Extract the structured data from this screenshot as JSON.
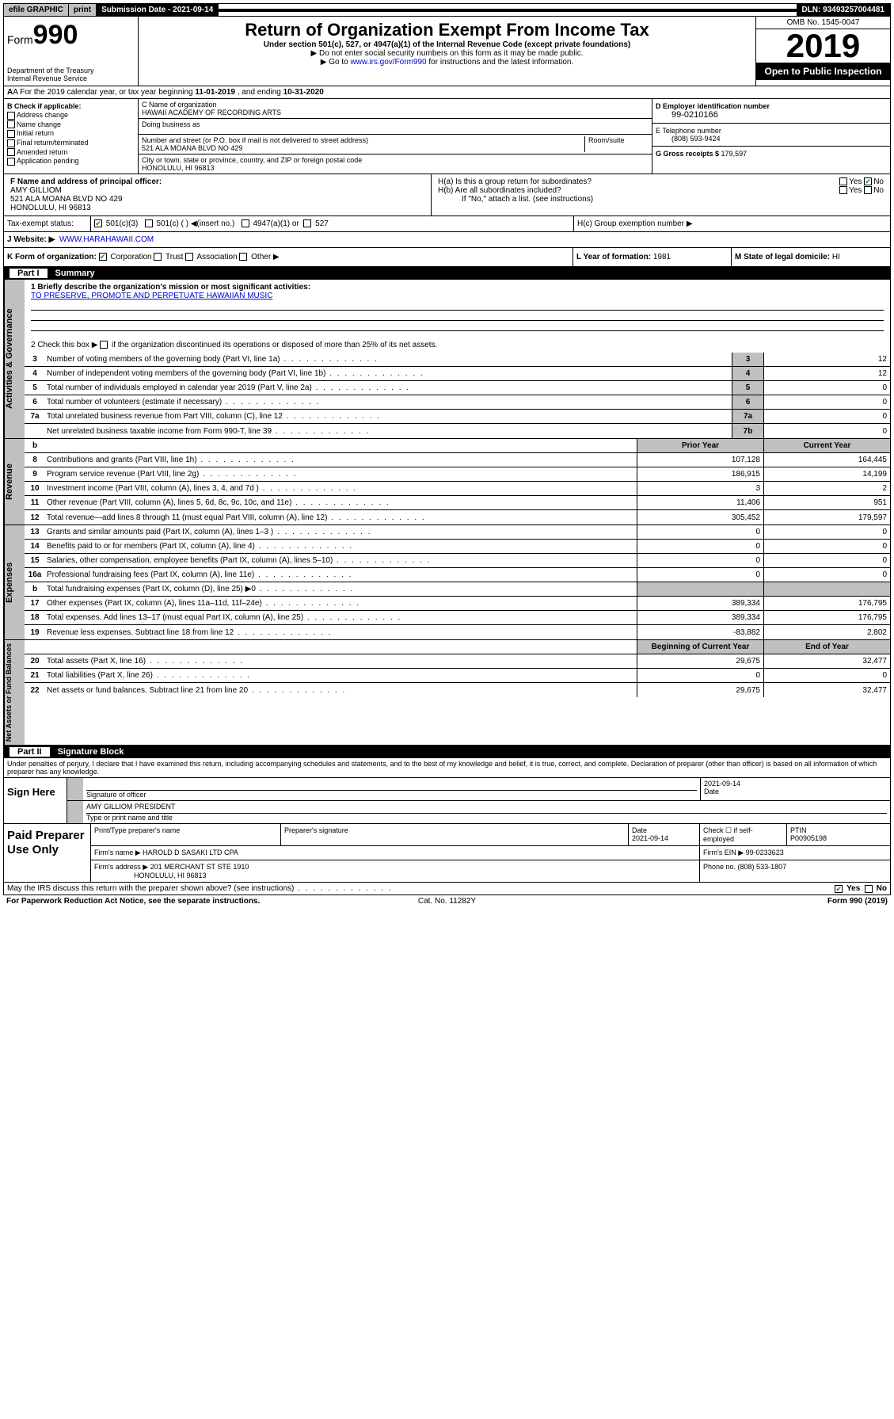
{
  "topbar": {
    "efile": "efile GRAPHIC",
    "print": "print",
    "subdate_label": "Submission Date - 2021-09-14",
    "dln": "DLN: 93493257004481"
  },
  "header": {
    "form_prefix": "Form",
    "form_num": "990",
    "dept": "Department of the Treasury\nInternal Revenue Service",
    "title": "Return of Organization Exempt From Income Tax",
    "subtitle": "Under section 501(c), 527, or 4947(a)(1) of the Internal Revenue Code (except private foundations)",
    "arrow1": "▶ Do not enter social security numbers on this form as it may be made public.",
    "arrow2_pre": "▶ Go to ",
    "arrow2_link": "www.irs.gov/Form990",
    "arrow2_post": " for instructions and the latest information.",
    "omb": "OMB No. 1545-0047",
    "year": "2019",
    "open": "Open to Public Inspection"
  },
  "row_a": {
    "prefix": "A  For the 2019 calendar year, or tax year beginning ",
    "begin": "11-01-2019",
    "mid": " , and ending ",
    "end": "10-31-2020"
  },
  "b": {
    "label": "B Check if applicable:",
    "opts": [
      "Address change",
      "Name change",
      "Initial return",
      "Final return/terminated",
      "Amended return",
      "Application pending"
    ]
  },
  "c": {
    "name_label": "C Name of organization",
    "name": "HAWAII ACADEMY OF RECORDING ARTS",
    "dba_label": "Doing business as",
    "street_label": "Number and street (or P.O. box if mail is not delivered to street address)",
    "street": "521 ALA MOANA BLVD NO 429",
    "room_label": "Room/suite",
    "city_label": "City or town, state or province, country, and ZIP or foreign postal code",
    "city": "HONOLULU, HI  96813"
  },
  "d": {
    "label": "D Employer identification number",
    "val": "99-0210166"
  },
  "e": {
    "label": "E Telephone number",
    "val": "(808) 593-9424"
  },
  "g": {
    "label": "G Gross receipts $ ",
    "val": "179,597"
  },
  "f": {
    "label": "F  Name and address of principal officer:",
    "name": "AMY GILLIOM",
    "street": "521 ALA MOANA BLVD NO 429",
    "city": "HONOLULU, HI  96813"
  },
  "h": {
    "a": "H(a)  Is this a group return for subordinates?",
    "b": "H(b)  Are all subordinates included?",
    "b_note": "If \"No,\" attach a list. (see instructions)",
    "c": "H(c)  Group exemption number ▶"
  },
  "i": {
    "label": "Tax-exempt status:",
    "opt1": "501(c)(3)",
    "opt2": "501(c) (   ) ◀(insert no.)",
    "opt3": "4947(a)(1) or",
    "opt4": "527"
  },
  "j": {
    "label": "J   Website: ▶",
    "val": "WWW.HARAHAWAII.COM"
  },
  "k": {
    "label": "K Form of organization:",
    "corp": "Corporation",
    "trust": "Trust",
    "assoc": "Association",
    "other": "Other ▶"
  },
  "l": {
    "label": "L Year of formation: ",
    "val": "1981"
  },
  "m": {
    "label": "M State of legal domicile: ",
    "val": "HI"
  },
  "part1": {
    "num": "Part I",
    "title": "Summary"
  },
  "mission": {
    "q": "1   Briefly describe the organization's mission or most significant activities:",
    "text": "TO PRESERVE, PROMOTE AND PERPETUATE HAWAIIAN MUSIC",
    "q2_pre": "2   Check this box ▶ ",
    "q2_post": " if the organization discontinued its operations or disposed of more than 25% of its net assets."
  },
  "gov_lines": [
    {
      "n": "3",
      "d": "Number of voting members of the governing body (Part VI, line 1a)",
      "box": "3",
      "v": "12"
    },
    {
      "n": "4",
      "d": "Number of independent voting members of the governing body (Part VI, line 1b)",
      "box": "4",
      "v": "12"
    },
    {
      "n": "5",
      "d": "Total number of individuals employed in calendar year 2019 (Part V, line 2a)",
      "box": "5",
      "v": "0"
    },
    {
      "n": "6",
      "d": "Total number of volunteers (estimate if necessary)",
      "box": "6",
      "v": "0"
    },
    {
      "n": "7a",
      "d": "Total unrelated business revenue from Part VIII, column (C), line 12",
      "box": "7a",
      "v": "0"
    },
    {
      "n": "",
      "d": "Net unrelated business taxable income from Form 990-T, line 39",
      "box": "7b",
      "v": "0"
    }
  ],
  "rev_hdr": {
    "b": "b",
    "prior": "Prior Year",
    "curr": "Current Year"
  },
  "rev_lines": [
    {
      "n": "8",
      "d": "Contributions and grants (Part VIII, line 1h)",
      "p": "107,128",
      "c": "164,445"
    },
    {
      "n": "9",
      "d": "Program service revenue (Part VIII, line 2g)",
      "p": "186,915",
      "c": "14,199"
    },
    {
      "n": "10",
      "d": "Investment income (Part VIII, column (A), lines 3, 4, and 7d )",
      "p": "3",
      "c": "2"
    },
    {
      "n": "11",
      "d": "Other revenue (Part VIII, column (A), lines 5, 6d, 8c, 9c, 10c, and 11e)",
      "p": "11,406",
      "c": "951"
    },
    {
      "n": "12",
      "d": "Total revenue—add lines 8 through 11 (must equal Part VIII, column (A), line 12)",
      "p": "305,452",
      "c": "179,597"
    }
  ],
  "exp_lines": [
    {
      "n": "13",
      "d": "Grants and similar amounts paid (Part IX, column (A), lines 1–3 )",
      "p": "0",
      "c": "0"
    },
    {
      "n": "14",
      "d": "Benefits paid to or for members (Part IX, column (A), line 4)",
      "p": "0",
      "c": "0"
    },
    {
      "n": "15",
      "d": "Salaries, other compensation, employee benefits (Part IX, column (A), lines 5–10)",
      "p": "0",
      "c": "0"
    },
    {
      "n": "16a",
      "d": "Professional fundraising fees (Part IX, column (A), line 11e)",
      "p": "0",
      "c": "0"
    },
    {
      "n": "b",
      "d": "Total fundraising expenses (Part IX, column (D), line 25) ▶0",
      "p": "",
      "c": "",
      "grey": true
    },
    {
      "n": "17",
      "d": "Other expenses (Part IX, column (A), lines 11a–11d, 11f–24e)",
      "p": "389,334",
      "c": "176,795"
    },
    {
      "n": "18",
      "d": "Total expenses. Add lines 13–17 (must equal Part IX, column (A), line 25)",
      "p": "389,334",
      "c": "176,795"
    },
    {
      "n": "19",
      "d": "Revenue less expenses. Subtract line 18 from line 12",
      "p": "-83,882",
      "c": "2,802"
    }
  ],
  "na_hdr": {
    "prior": "Beginning of Current Year",
    "curr": "End of Year"
  },
  "na_lines": [
    {
      "n": "20",
      "d": "Total assets (Part X, line 16)",
      "p": "29,675",
      "c": "32,477"
    },
    {
      "n": "21",
      "d": "Total liabilities (Part X, line 26)",
      "p": "0",
      "c": "0"
    },
    {
      "n": "22",
      "d": "Net assets or fund balances. Subtract line 21 from line 20",
      "p": "29,675",
      "c": "32,477"
    }
  ],
  "vtabs": {
    "gov": "Activities & Governance",
    "rev": "Revenue",
    "exp": "Expenses",
    "na": "Net Assets or Fund Balances"
  },
  "part2": {
    "num": "Part II",
    "title": "Signature Block"
  },
  "decl": "Under penalties of perjury, I declare that I have examined this return, including accompanying schedules and statements, and to the best of my knowledge and belief, it is true, correct, and complete. Declaration of preparer (other than officer) is based on all information of which preparer has any knowledge.",
  "sign": {
    "here": "Sign Here",
    "sig_label": "Signature of officer",
    "date": "2021-09-14",
    "date_label": "Date",
    "name": "AMY GILLIOM PRESIDENT",
    "name_label": "Type or print name and title"
  },
  "paid": {
    "label": "Paid Preparer Use Only",
    "h1": "Print/Type preparer's name",
    "h2": "Preparer's signature",
    "h3": "Date",
    "h3v": "2021-09-14",
    "h4": "Check ☐ if self-employed",
    "h5": "PTIN",
    "h5v": "P00905198",
    "firm_label": "Firm's name    ▶",
    "firm": "HAROLD D SASAKI LTD CPA",
    "ein_label": "Firm's EIN ▶",
    "ein": "99-0233623",
    "addr_label": "Firm's address ▶",
    "addr": "201 MERCHANT ST STE 1910",
    "city": "HONOLULU, HI  96813",
    "phone_label": "Phone no. ",
    "phone": "(808) 533-1807"
  },
  "discuss": {
    "q": "May the IRS discuss this return with the preparer shown above? (see instructions)",
    "yes": "Yes",
    "no": "No"
  },
  "footer": {
    "l": "For Paperwork Reduction Act Notice, see the separate instructions.",
    "c": "Cat. No. 11282Y",
    "r": "Form 990 (2019)"
  }
}
